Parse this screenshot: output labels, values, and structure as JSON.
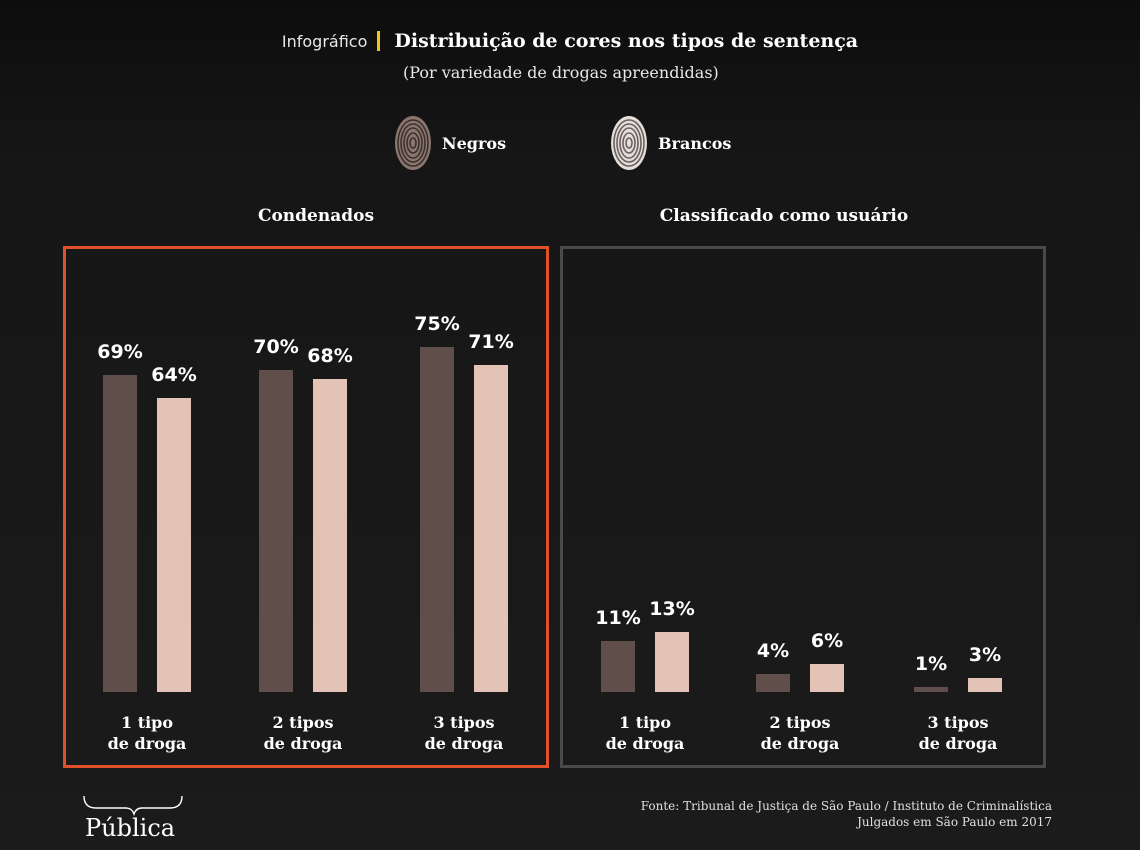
{
  "header": {
    "kicker": "Infográfico",
    "title": "Distribuição de cores nos tipos de sentença",
    "subtitle": "(Por variedade de drogas apreendidas)"
  },
  "legend": [
    {
      "label": "Negros",
      "color": "#5f4e49",
      "icon": "fingerprint-icon"
    },
    {
      "label": "Brancos",
      "color": "#e2c3b5",
      "icon": "fingerprint-icon"
    }
  ],
  "chart_data": [
    {
      "type": "bar",
      "title": "Condenados",
      "categories": [
        "1 tipo de droga",
        "2 tipos de droga",
        "3 tipos de droga"
      ],
      "category_lines": [
        [
          "1 tipo",
          "de droga"
        ],
        [
          "2 tipos",
          "de droga"
        ],
        [
          "3 tipos",
          "de droga"
        ]
      ],
      "series": [
        {
          "name": "Negros",
          "values": [
            69,
            70,
            75
          ],
          "labels": [
            "69%",
            "70%",
            "75%"
          ]
        },
        {
          "name": "Brancos",
          "values": [
            64,
            68,
            71
          ],
          "labels": [
            "64%",
            "68%",
            "71%"
          ]
        }
      ],
      "ylim": [
        0,
        100
      ],
      "border_color": "#e0512a"
    },
    {
      "type": "bar",
      "title": "Classificado como usuário",
      "categories": [
        "1 tipo de droga",
        "2 tipos de droga",
        "3 tipos de droga"
      ],
      "category_lines": [
        [
          "1 tipo",
          "de droga"
        ],
        [
          "2 tipos",
          "de droga"
        ],
        [
          "3 tipos",
          "de droga"
        ]
      ],
      "series": [
        {
          "name": "Negros",
          "values": [
            11,
            4,
            1
          ],
          "labels": [
            "11%",
            "4%",
            "1%"
          ]
        },
        {
          "name": "Brancos",
          "values": [
            13,
            6,
            3
          ],
          "labels": [
            "13%",
            "6%",
            "3%"
          ]
        }
      ],
      "ylim": [
        0,
        100
      ],
      "border_color": "#4a4a4a"
    }
  ],
  "footer": {
    "source": "Fonte: Tribunal de Justiça de São Paulo / Instituto de Criminalística",
    "note": "Julgados em São Paulo em 2017"
  },
  "logo": {
    "text": "Pública"
  }
}
